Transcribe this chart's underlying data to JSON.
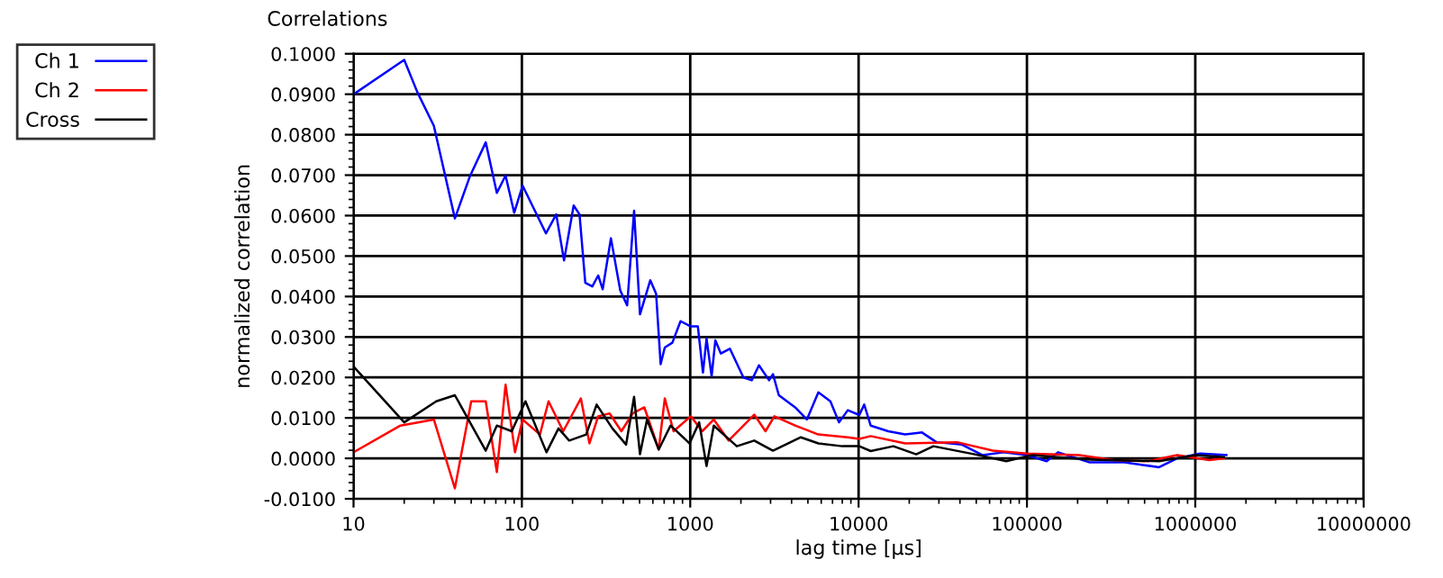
{
  "chart_data": {
    "type": "line",
    "title": "Correlations",
    "xlabel": "lag time [µs]",
    "ylabel": "normalized correlation",
    "log": "x",
    "grid": true,
    "legend": "top left",
    "marker": "none",
    "line_style": "solid",
    "xlim": [
      10,
      10000000
    ],
    "xticks": [
      10,
      100,
      1000,
      10000,
      100000,
      1000000,
      10000000
    ],
    "ylim": [
      -0.01,
      0.1
    ],
    "yticks": [
      {
        "value": -0.01,
        "label": "-0.0100"
      },
      {
        "value": 0,
        "label": "0.0000"
      },
      {
        "value": 0.01,
        "label": "0.0100"
      },
      {
        "value": 0.02,
        "label": "0.0200"
      },
      {
        "value": 0.03,
        "label": "0.0300"
      },
      {
        "value": 0.04,
        "label": "0.0400"
      },
      {
        "value": 0.05,
        "label": "0.0500"
      },
      {
        "value": 0.06,
        "label": "0.0600"
      },
      {
        "value": 0.07,
        "label": "0.0700"
      },
      {
        "value": 0.08,
        "label": "0.0800"
      },
      {
        "value": 0.09,
        "label": "0.0900"
      },
      {
        "value": 0.1,
        "label": "0.1000"
      }
    ],
    "series": [
      {
        "name": "Ch 1",
        "color": "#0000ff",
        "x": [
          10,
          20,
          24,
          30,
          40,
          49,
          61,
          71,
          80,
          90,
          101,
          139,
          160,
          178,
          203,
          220,
          238,
          262,
          284,
          302,
          338,
          384,
          422,
          464,
          503,
          579,
          627,
          667,
          706,
          783,
          876,
          1008,
          1110,
          1190,
          1250,
          1340,
          1410,
          1520,
          1720,
          2070,
          2320,
          2560,
          2940,
          3100,
          3360,
          4200,
          4930,
          5770,
          6800,
          7650,
          8630,
          10100,
          10800,
          11800,
          15000,
          18900,
          23800,
          29000,
          41100,
          54600,
          72600,
          100000,
          131000,
          153000,
          236000,
          380000,
          610000,
          780000,
          1070000,
          1530000
        ],
        "values": [
          0.09,
          0.0985,
          0.0904,
          0.0822,
          0.0593,
          0.0696,
          0.0781,
          0.0656,
          0.0699,
          0.0607,
          0.0674,
          0.0556,
          0.0603,
          0.0489,
          0.0625,
          0.0603,
          0.0434,
          0.0425,
          0.0452,
          0.0418,
          0.0544,
          0.0415,
          0.0378,
          0.0612,
          0.0356,
          0.044,
          0.0407,
          0.0233,
          0.0274,
          0.0286,
          0.0339,
          0.0326,
          0.0326,
          0.0212,
          0.0296,
          0.0203,
          0.0292,
          0.0259,
          0.0271,
          0.02,
          0.0193,
          0.023,
          0.0193,
          0.0208,
          0.0156,
          0.0126,
          0.0096,
          0.0163,
          0.0141,
          0.0089,
          0.0119,
          0.0107,
          0.0133,
          0.0081,
          0.0067,
          0.0059,
          0.0064,
          0.004,
          0.0034,
          0.0008,
          0.0015,
          0.0008,
          -0.0007,
          0.0015,
          -0.001,
          -0.001,
          -0.0022,
          0,
          0.0012,
          0.0008
        ]
      },
      {
        "name": "Ch 2",
        "color": "#ff0000",
        "x": [
          10,
          19,
          30,
          40,
          50,
          61,
          71,
          80,
          91,
          101,
          128,
          144,
          176,
          224,
          252,
          284,
          332,
          390,
          455,
          534,
          650,
          706,
          796,
          1008,
          1180,
          1380,
          1690,
          2400,
          2800,
          3160,
          4200,
          5770,
          8630,
          10100,
          11800,
          18900,
          38400,
          62600,
          100000,
          204000,
          327000,
          523000,
          780000,
          1210000,
          1480000
        ],
        "values": [
          0.0015,
          0.0081,
          0.0096,
          -0.0074,
          0.0141,
          0.0141,
          -0.0034,
          0.0182,
          0.0015,
          0.0096,
          0.0059,
          0.0141,
          0.0067,
          0.0148,
          0.0037,
          0.0104,
          0.0111,
          0.0067,
          0.0111,
          0.0126,
          0.0022,
          0.0148,
          0.0067,
          0.0104,
          0.0067,
          0.0096,
          0.0044,
          0.0108,
          0.0067,
          0.0104,
          0.0081,
          0.0059,
          0.0052,
          0.0048,
          0.0055,
          0.0037,
          0.004,
          0.0019,
          0.0012,
          0.0008,
          -0.0004,
          -0.0007,
          0.0008,
          -0.0004,
          0
        ]
      },
      {
        "name": "Cross",
        "color": "#000000",
        "x": [
          10,
          20,
          31,
          40,
          61,
          71,
          87,
          105,
          140,
          165,
          191,
          241,
          278,
          345,
          416,
          464,
          503,
          554,
          650,
          764,
          991,
          1130,
          1250,
          1380,
          1890,
          2400,
          3100,
          4540,
          5770,
          8000,
          10100,
          11800,
          16100,
          22000,
          27800,
          49000,
          75400,
          107000,
          236000,
          610000,
          1000000,
          1480000
        ],
        "values": [
          0.0227,
          0.0089,
          0.0141,
          0.0156,
          0.0019,
          0.0081,
          0.0067,
          0.0141,
          0.0015,
          0.0074,
          0.0044,
          0.0059,
          0.0133,
          0.0074,
          0.0034,
          0.0152,
          0.001,
          0.0096,
          0.0022,
          0.0081,
          0.0037,
          0.0089,
          -0.0019,
          0.0081,
          0.003,
          0.0044,
          0.0019,
          0.0052,
          0.0037,
          0.003,
          0.003,
          0.0018,
          0.003,
          0.001,
          0.003,
          0.001,
          -0.0007,
          0.0008,
          -0.0003,
          -0.0007,
          0.0008,
          0.0003
        ]
      }
    ]
  }
}
